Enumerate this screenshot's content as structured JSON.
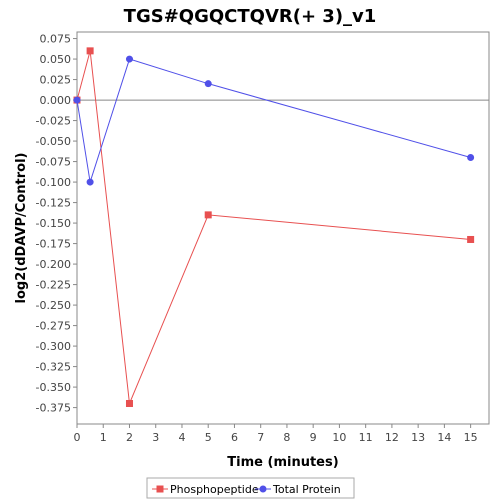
{
  "chart_data": {
    "type": "line",
    "title": "TGS#QGQCTQVR(+ 3)_v1",
    "xlabel": "Time (minutes)",
    "ylabel": "log2(dDAVP/Control)",
    "xlim": [
      0,
      15.7
    ],
    "ylim": [
      -0.395,
      0.083
    ],
    "x_ticks": [
      0,
      1,
      2,
      3,
      4,
      5,
      6,
      7,
      8,
      9,
      10,
      11,
      12,
      13,
      14,
      15
    ],
    "y_ticks": [
      0.075,
      0.05,
      0.025,
      0.0,
      -0.025,
      -0.05,
      -0.075,
      -0.1,
      -0.125,
      -0.15,
      -0.175,
      -0.2,
      -0.225,
      -0.25,
      -0.275,
      -0.3,
      -0.325,
      -0.35,
      -0.375
    ],
    "y_tick_labels": [
      "0.075",
      "0.050",
      "0.025",
      "0.000",
      "-0.025",
      "-0.050",
      "-0.075",
      "-0.100",
      "-0.125",
      "-0.150",
      "-0.175",
      "-0.200",
      "-0.225",
      "-0.250",
      "-0.275",
      "-0.300",
      "-0.325",
      "-0.350",
      "-0.375"
    ],
    "zero_line": true,
    "grid": false,
    "legend_position": "bottom",
    "series": [
      {
        "name": "Phosphopeptide",
        "color": "#e85050",
        "marker": "square",
        "x": [
          0,
          0.5,
          2,
          5,
          15
        ],
        "y": [
          0.0,
          0.06,
          -0.37,
          -0.14,
          -0.17
        ]
      },
      {
        "name": "Total Protein",
        "color": "#5050e8",
        "marker": "circle",
        "x": [
          0,
          0.5,
          2,
          5,
          15
        ],
        "y": [
          0.0,
          -0.1,
          0.05,
          0.02,
          -0.07
        ]
      }
    ]
  }
}
